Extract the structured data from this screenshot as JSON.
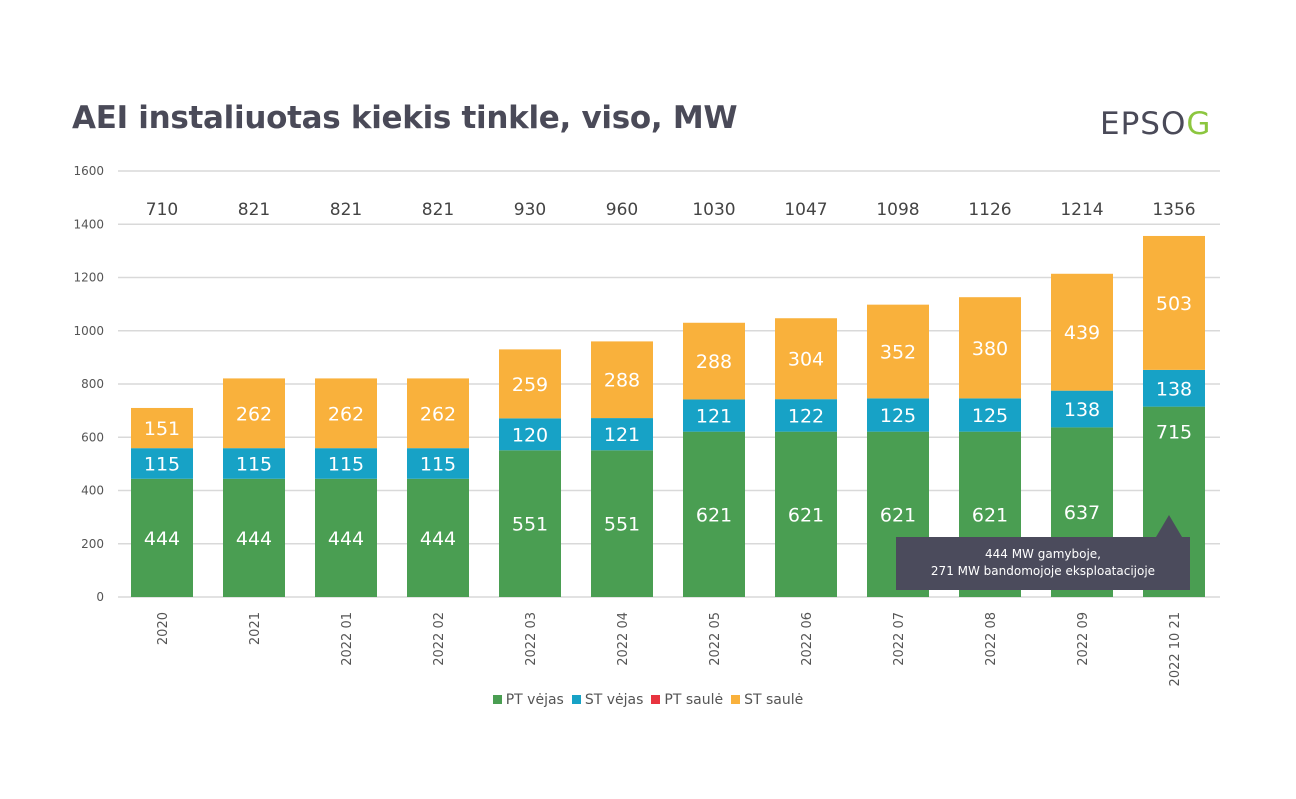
{
  "logo": {
    "text_main": "EPSO",
    "text_accent": "G"
  },
  "chart_data": {
    "type": "bar",
    "stacked": true,
    "title": "AEI instaliuotas kiekis tinkle, viso, MW",
    "categories": [
      "2020",
      "2021",
      "2022 01",
      "2022 02",
      "2022 03",
      "2022 04",
      "2022 05",
      "2022 06",
      "2022 07",
      "2022 08",
      "2022 09",
      "2022 10 21"
    ],
    "series": [
      {
        "name": "PT vėjas",
        "color": "#4a9e52",
        "values": [
          444,
          444,
          444,
          444,
          551,
          551,
          621,
          621,
          621,
          621,
          637,
          715
        ]
      },
      {
        "name": "ST vėjas",
        "color": "#17a2c6",
        "values": [
          115,
          115,
          115,
          115,
          120,
          121,
          121,
          122,
          125,
          125,
          138,
          138
        ]
      },
      {
        "name": "PT saulė",
        "color": "#e8343f",
        "values": [
          0,
          0,
          0,
          0,
          0,
          0,
          0,
          0,
          0,
          0,
          0,
          0
        ]
      },
      {
        "name": "ST saulė",
        "color": "#f9b13c",
        "values": [
          151,
          262,
          262,
          262,
          259,
          288,
          288,
          304,
          352,
          380,
          439,
          503
        ]
      }
    ],
    "totals": [
      710,
      821,
      821,
      821,
      930,
      960,
      1030,
      1047,
      1098,
      1126,
      1214,
      1356
    ],
    "ylim": [
      0,
      1600
    ],
    "yticks": [
      0,
      200,
      400,
      600,
      800,
      1000,
      1200,
      1400,
      1600
    ],
    "grid": true,
    "legend_position": "bottom",
    "annotation": {
      "line1": "444 MW gamyboje,",
      "line2": "271 MW bandomojoje eksploatacijoje"
    }
  }
}
